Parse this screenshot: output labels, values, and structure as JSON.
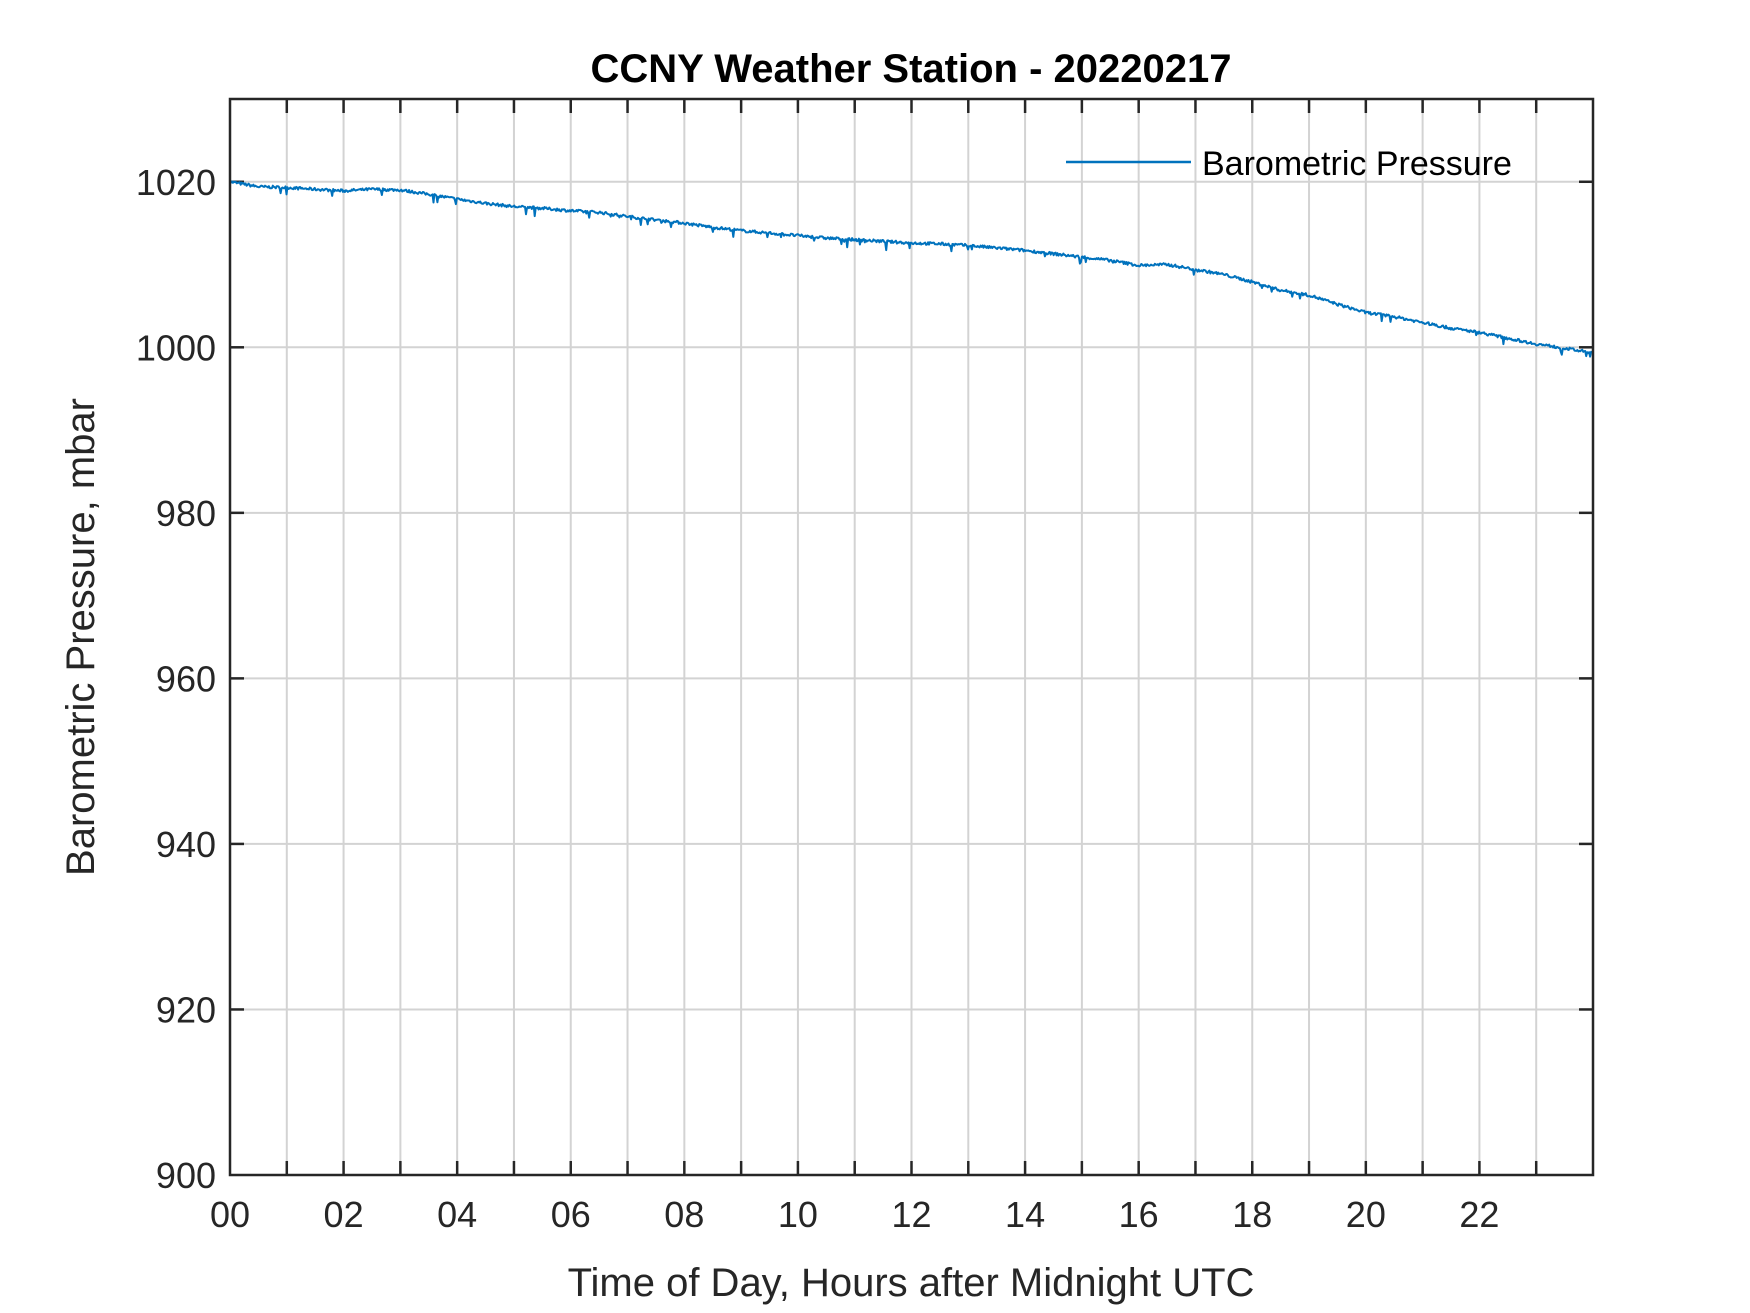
{
  "chart_data": {
    "type": "line",
    "title": "CCNY Weather Station - 20220217",
    "xlabel": "Time of Day, Hours after Midnight UTC",
    "ylabel": "Barometric Pressure, mbar",
    "xlim": [
      0,
      24
    ],
    "ylim": [
      900,
      1030
    ],
    "x_ticks": [
      0,
      2,
      4,
      6,
      8,
      10,
      12,
      14,
      16,
      18,
      20,
      22
    ],
    "x_tick_labels": [
      "00",
      "02",
      "04",
      "06",
      "08",
      "10",
      "12",
      "14",
      "16",
      "18",
      "20",
      "22"
    ],
    "x_minor_grid_step": 1,
    "y_ticks": [
      900,
      920,
      940,
      960,
      980,
      1000,
      1020
    ],
    "y_tick_labels": [
      "900",
      "920",
      "940",
      "960",
      "980",
      "1000",
      "1020"
    ],
    "grid": true,
    "legend_position": "top-right",
    "series": [
      {
        "name": "Barometric Pressure",
        "color": "#0072BD",
        "x": [
          0,
          0.5,
          1,
          1.5,
          2,
          2.5,
          3,
          3.5,
          4,
          4.5,
          5,
          5.5,
          6,
          6.5,
          7,
          7.5,
          8,
          8.5,
          9,
          9.5,
          10,
          10.5,
          11,
          11.5,
          12,
          12.5,
          13,
          13.5,
          14,
          14.5,
          15,
          15.5,
          16,
          16.5,
          17,
          17.5,
          18,
          18.5,
          19,
          19.5,
          20,
          20.5,
          21,
          21.5,
          22,
          22.5,
          23,
          23.5,
          24
        ],
        "y": [
          1020,
          1019.4,
          1019.3,
          1019.1,
          1018.9,
          1019.1,
          1019.0,
          1018.5,
          1017.9,
          1017.4,
          1017.0,
          1016.8,
          1016.5,
          1016.3,
          1015.8,
          1015.4,
          1015.0,
          1014.5,
          1014.1,
          1013.8,
          1013.5,
          1013.2,
          1013.0,
          1012.8,
          1012.6,
          1012.5,
          1012.3,
          1012.0,
          1011.7,
          1011.3,
          1010.9,
          1010.5,
          1009.9,
          1010.0,
          1009.4,
          1008.8,
          1007.9,
          1006.9,
          1006.3,
          1005.2,
          1004.2,
          1003.7,
          1003.0,
          1002.3,
          1001.8,
          1001.1,
          1000.4,
          999.9,
          999.3
        ]
      }
    ]
  }
}
